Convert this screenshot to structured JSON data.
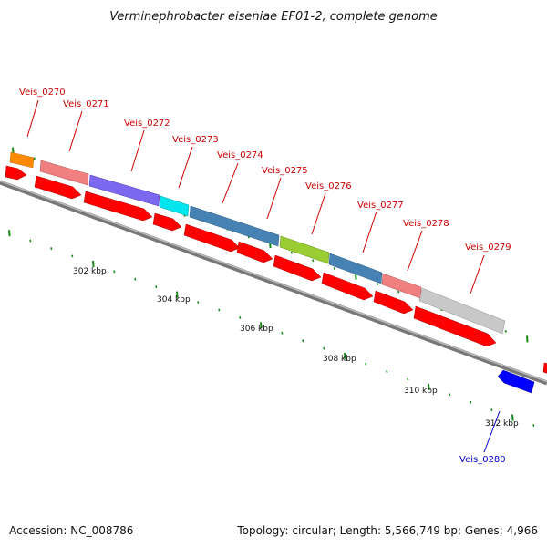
{
  "title": "Verminephrobacter eiseniae EF01-2, complete genome",
  "footer": {
    "accession": "Accession: NC_008786",
    "topology": "Topology: circular; Length: 5,566,749 bp; Genes: 4,966"
  },
  "colors": {
    "cds_red": "#ff0000",
    "backbone": "#888888",
    "tick_green": "#1a8a1a",
    "label_red": "#cc0000",
    "label_blue": "#0000cc"
  },
  "genes": [
    {
      "name": "Veis_0270",
      "color": "#ff8c00",
      "label_color": "#cc0000"
    },
    {
      "name": "Veis_0271",
      "color": "#f08080",
      "label_color": "#cc0000"
    },
    {
      "name": "Veis_0272",
      "color": "#7b68ee",
      "label_color": "#cc0000"
    },
    {
      "name": "Veis_0273",
      "color": "#00e5ee",
      "label_color": "#cc0000"
    },
    {
      "name": "Veis_0274",
      "color": "#4682b4",
      "label_color": "#cc0000"
    },
    {
      "name": "Veis_0275",
      "color": "#9acd32",
      "label_color": "#cc0000"
    },
    {
      "name": "Veis_0276",
      "color": "#4682b4",
      "label_color": "#cc0000"
    },
    {
      "name": "Veis_0277",
      "color": "#f08080",
      "label_color": "#cc0000"
    },
    {
      "name": "Veis_0278",
      "color": "#c8c8c8",
      "label_color": "#cc0000"
    },
    {
      "name": "Veis_0279",
      "color": "#c8c8c8",
      "label_color": "#cc0000"
    },
    {
      "name": "Veis_0280",
      "color": "#0000ff",
      "label_color": "#0000cc"
    }
  ],
  "ruler": {
    "labels": [
      "302 kbp",
      "304 kbp",
      "306 kbp",
      "308 kbp",
      "310 kbp",
      "312 kbp"
    ]
  }
}
